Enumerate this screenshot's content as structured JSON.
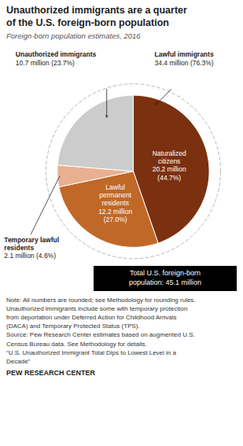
{
  "chart_data": {
    "type": "pie",
    "title": "Unauthorized immigrants are a quarter\nof the U.S. foreign-born population",
    "subtitle": "Foreign-born population estimates, 2016",
    "categories": [
      "Naturalized\ncitizens",
      "Lawful\npermanent\nresidents",
      "Temporary lawful\nresidents",
      "Unauthorized immigrants"
    ],
    "values": [
      44.7,
      27.0,
      4.6,
      23.7
    ],
    "value_labels": [
      "20.2 million\n(44.7%)",
      "12.2 million\n(27.0%)",
      "2.1 million (4.6%)",
      "10.7 million (23.7%)"
    ],
    "colors": [
      "#7B3010",
      "#C06828",
      "#E8B090",
      "#CCCCCC"
    ],
    "annotations": [
      "Lawful immigrants\n34.4 million (76.3%)",
      "Total U.S. foreign-born\npopulation: 45.1 million"
    ],
    "note": "Note: All numbers are rounded; see Methodology for rounding rules.\nUnauthorized immigrants include some with temporary protection\nfrom deportation under Deferred Action for Childhood Arrivals\n(DACA) and Temporary Protected Status (TPS).\nSource: Pew Research Center estimates based on augmented U.S.\nCensus Bureau data. See Methodology for details.\n“U.S. Unauthorized Immigrant Total Dips to Lowest Level in a\nDecade”",
    "footer": "PEW RESEARCH CENTER"
  }
}
